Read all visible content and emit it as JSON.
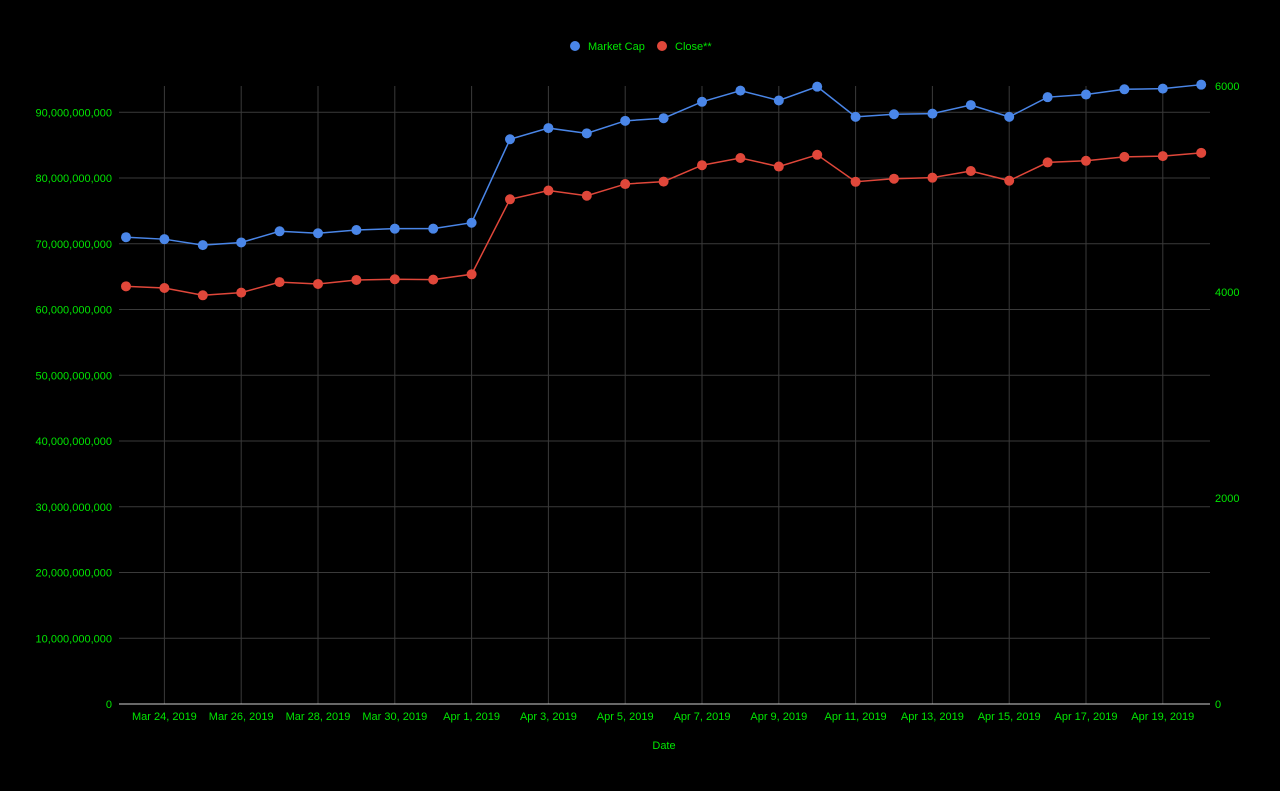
{
  "colors": {
    "background": "#000000",
    "text": "#00e600",
    "grid": "#3a3a3a",
    "baseline": "#cfcfcf",
    "market_cap": "#4a86e8",
    "close": "#e0473a"
  },
  "chart_data": {
    "type": "line",
    "title": "",
    "xlabel": "Date",
    "ylabel_left": "",
    "ylabel_right": "",
    "legend_position": "top-center",
    "grid": true,
    "x": [
      "2019-03-23",
      "2019-03-24",
      "2019-03-25",
      "2019-03-26",
      "2019-03-27",
      "2019-03-28",
      "2019-03-29",
      "2019-03-30",
      "2019-03-31",
      "2019-04-01",
      "2019-04-02",
      "2019-04-03",
      "2019-04-04",
      "2019-04-05",
      "2019-04-06",
      "2019-04-07",
      "2019-04-08",
      "2019-04-09",
      "2019-04-10",
      "2019-04-11",
      "2019-04-12",
      "2019-04-13",
      "2019-04-14",
      "2019-04-15",
      "2019-04-16",
      "2019-04-17",
      "2019-04-18",
      "2019-04-19",
      "2019-04-20"
    ],
    "x_tick_labels": [
      "Mar 24, 2019",
      "Mar 26, 2019",
      "Mar 28, 2019",
      "Mar 30, 2019",
      "Apr 1, 2019",
      "Apr 3, 2019",
      "Apr 5, 2019",
      "Apr 7, 2019",
      "Apr 9, 2019",
      "Apr 11, 2019",
      "Apr 13, 2019",
      "Apr 15, 2019",
      "Apr 17, 2019",
      "Apr 19, 2019"
    ],
    "y_left": {
      "ylim": [
        0,
        94000000000
      ],
      "tick_labels": [
        "0",
        "10,000,000,000",
        "20,000,000,000",
        "30,000,000,000",
        "40,000,000,000",
        "50,000,000,000",
        "60,000,000,000",
        "70,000,000,000",
        "80,000,000,000",
        "90,000,000,000"
      ],
      "tick_values": [
        0,
        10000000000,
        20000000000,
        30000000000,
        40000000000,
        50000000000,
        60000000000,
        70000000000,
        80000000000,
        90000000000
      ]
    },
    "y_right": {
      "ylim": [
        0,
        6000
      ],
      "tick_labels": [
        "0",
        "2000",
        "4000",
        "6000"
      ],
      "tick_values": [
        0,
        2000,
        4000,
        6000
      ]
    },
    "series": [
      {
        "name": "Market Cap",
        "axis": "left",
        "values": [
          71000000000,
          70700000000,
          69800000000,
          70200000000,
          71900000000,
          71600000000,
          72100000000,
          72300000000,
          72300000000,
          73200000000,
          85900000000,
          87600000000,
          86800000000,
          88700000000,
          89100000000,
          91600000000,
          93300000000,
          91800000000,
          93900000000,
          89300000000,
          89700000000,
          89800000000,
          91100000000,
          89300000000,
          92300000000,
          92700000000,
          93500000000,
          93600000000,
          94200000000
        ]
      },
      {
        "name": "Close**",
        "axis": "right",
        "values": [
          4055,
          4039,
          3968,
          3994,
          4096,
          4078,
          4117,
          4124,
          4120,
          4172,
          4900,
          4985,
          4935,
          5048,
          5072,
          5231,
          5301,
          5218,
          5332,
          5070,
          5100,
          5110,
          5175,
          5081,
          5258,
          5274,
          5312,
          5319,
          5351
        ]
      }
    ]
  }
}
